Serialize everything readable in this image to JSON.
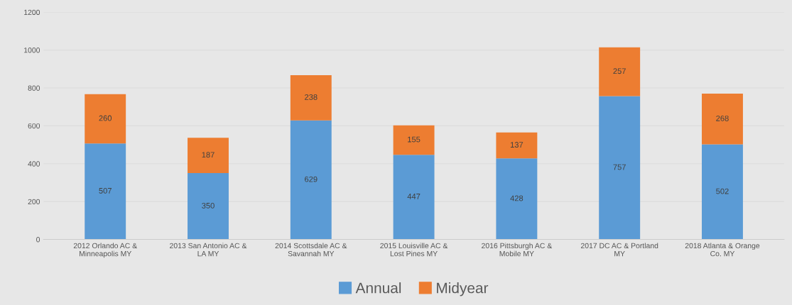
{
  "chart_data": {
    "type": "bar",
    "stacked": true,
    "categories": [
      "2012 Orlando AC &\nMinneapolis MY",
      "2013 San Antonio AC &\nLA MY",
      "2014 Scottsdale AC &\nSavannah MY",
      "2015 Louisville AC &\nLost Pines MY",
      "2016 Pittsburgh AC &\nMobile MY",
      "2017 DC AC & Portland\nMY",
      "2018 Atlanta & Orange\nCo. MY"
    ],
    "series": [
      {
        "name": "Annual",
        "color": "#5b9bd5",
        "values": [
          507,
          350,
          629,
          447,
          428,
          757,
          502
        ]
      },
      {
        "name": "Midyear",
        "color": "#ed7d31",
        "values": [
          260,
          187,
          238,
          155,
          137,
          257,
          268
        ]
      }
    ],
    "ylim": [
      0,
      1200
    ],
    "yticks": [
      0,
      200,
      400,
      600,
      800,
      1000,
      1200
    ],
    "grid": "y",
    "legend": "bottom",
    "data_labels": true
  }
}
